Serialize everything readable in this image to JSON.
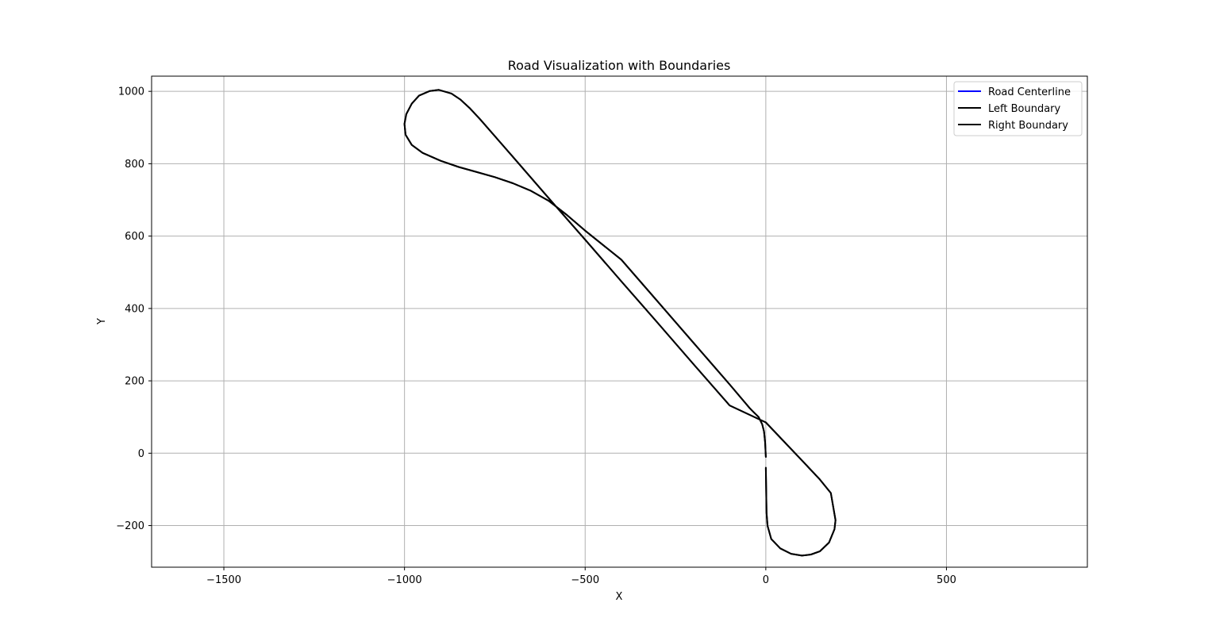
{
  "chart_data": {
    "type": "line",
    "title": "Road Visualization with Boundaries",
    "xlabel": "X",
    "ylabel": "Y",
    "xlim": [
      -1700,
      890
    ],
    "ylim": [
      -315,
      1042
    ],
    "grid": true,
    "legend_position": "top-right",
    "x_ticks": [
      {
        "value": -1500,
        "label": "−1500"
      },
      {
        "value": -1000,
        "label": "−1000"
      },
      {
        "value": -500,
        "label": "−500"
      },
      {
        "value": 0,
        "label": "0"
      },
      {
        "value": 500,
        "label": "500"
      }
    ],
    "y_ticks": [
      {
        "value": -200,
        "label": "−200"
      },
      {
        "value": 0,
        "label": "0"
      },
      {
        "value": 200,
        "label": "200"
      },
      {
        "value": 400,
        "label": "400"
      },
      {
        "value": 600,
        "label": "600"
      },
      {
        "value": 800,
        "label": "800"
      },
      {
        "value": 1000,
        "label": "1000"
      }
    ],
    "series": [
      {
        "name": "Road Centerline",
        "color": "#0000ff",
        "x": [
          0,
          -2,
          -5,
          -10,
          -20,
          -35,
          -45,
          -100,
          -200,
          -300,
          -400,
          -500,
          -550,
          -600,
          -650,
          -700,
          -750,
          -800,
          -850,
          -900,
          -950,
          -980,
          -997,
          -1000,
          -995,
          -980,
          -960,
          -930,
          -905,
          -870,
          -845,
          -820,
          -790,
          -700,
          -600,
          -500,
          -400,
          -300,
          -200,
          -100,
          0,
          100,
          150,
          180,
          193,
          190,
          175,
          150,
          125,
          100,
          70,
          40,
          15,
          5,
          2,
          0
        ],
        "y": [
          -10,
          30,
          60,
          80,
          100,
          115,
          125,
          190,
          305,
          420,
          535,
          615,
          658,
          697,
          725,
          746,
          763,
          777,
          791,
          808,
          830,
          852,
          880,
          910,
          937,
          966,
          988,
          1001,
          1004,
          994,
          977,
          954,
          922,
          819,
          704,
          590,
          475,
          361,
          246,
          132,
          85,
          -20,
          -73,
          -110,
          -185,
          -210,
          -247,
          -271,
          -280,
          -283,
          -278,
          -263,
          -237,
          -201,
          -165,
          -40
        ]
      },
      {
        "name": "Left Boundary",
        "color": "#000000",
        "x": [
          0,
          -2,
          -5,
          -10,
          -20,
          -35,
          -45,
          -100,
          -200,
          -300,
          -400,
          -500,
          -550,
          -600,
          -650,
          -700,
          -750,
          -800,
          -850,
          -900,
          -950,
          -980,
          -997,
          -1000,
          -995,
          -980,
          -960,
          -930,
          -905,
          -870,
          -845,
          -820,
          -790,
          -700,
          -600,
          -500,
          -400,
          -300,
          -200,
          -100,
          0,
          100,
          150,
          180,
          193,
          190,
          175,
          150,
          125,
          100,
          70,
          40,
          15,
          5,
          2,
          0
        ],
        "y": [
          -10,
          30,
          60,
          80,
          100,
          115,
          125,
          190,
          305,
          420,
          535,
          615,
          658,
          697,
          725,
          746,
          763,
          777,
          791,
          808,
          830,
          852,
          880,
          910,
          937,
          966,
          988,
          1001,
          1004,
          994,
          977,
          954,
          922,
          819,
          704,
          590,
          475,
          361,
          246,
          132,
          85,
          -20,
          -73,
          -110,
          -185,
          -210,
          -247,
          -271,
          -280,
          -283,
          -278,
          -263,
          -237,
          -201,
          -165,
          -40
        ]
      },
      {
        "name": "Right Boundary",
        "color": "#000000",
        "x": [
          0,
          -2,
          -5,
          -10,
          -20,
          -35,
          -45,
          -100,
          -200,
          -300,
          -400,
          -500,
          -550,
          -600,
          -650,
          -700,
          -750,
          -800,
          -850,
          -900,
          -950,
          -980,
          -997,
          -1000,
          -995,
          -980,
          -960,
          -930,
          -905,
          -870,
          -845,
          -820,
          -790,
          -700,
          -600,
          -500,
          -400,
          -300,
          -200,
          -100,
          0,
          100,
          150,
          180,
          193,
          190,
          175,
          150,
          125,
          100,
          70,
          40,
          15,
          5,
          2,
          0
        ],
        "y": [
          -10,
          30,
          60,
          80,
          100,
          115,
          125,
          190,
          305,
          420,
          535,
          615,
          658,
          697,
          725,
          746,
          763,
          777,
          791,
          808,
          830,
          852,
          880,
          910,
          937,
          966,
          988,
          1001,
          1004,
          994,
          977,
          954,
          922,
          819,
          704,
          590,
          475,
          361,
          246,
          132,
          85,
          -20,
          -73,
          -110,
          -185,
          -210,
          -247,
          -271,
          -280,
          -283,
          -278,
          -263,
          -237,
          -201,
          -165,
          -40
        ]
      }
    ]
  }
}
